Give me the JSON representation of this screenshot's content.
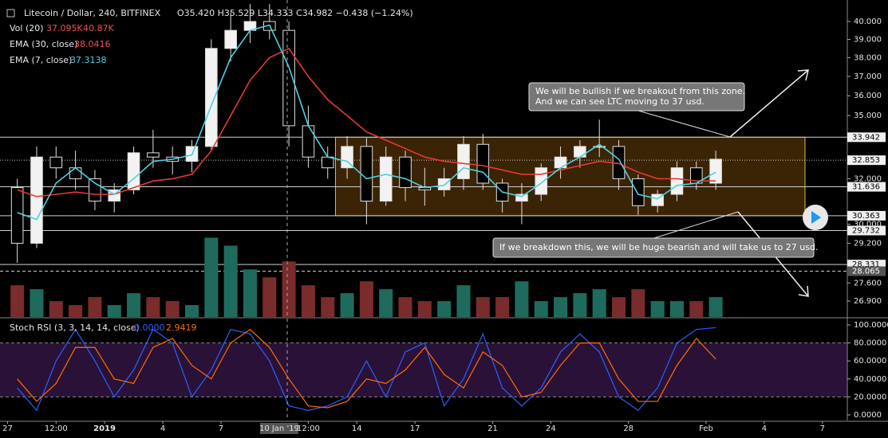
{
  "chart_data": [
    {
      "type": "candlestick",
      "title": "Litecoin / Dollar, 240, BITFINEX",
      "ohlc_readout": "O35.420 H35.529 L34.333 C34.982 −0.438 (−1.24%)",
      "log": true,
      "xlim": [
        -0.39,
        43.28
      ],
      "ylim": [
        26.3,
        41.24
      ],
      "y2lim": [
        0,
        400
      ],
      "xticks": [
        {
          "value": 0,
          "label": "27"
        },
        {
          "value": 2.5,
          "label": "12:00"
        },
        {
          "value": 5,
          "label": "2019"
        },
        {
          "value": 8,
          "label": "4"
        },
        {
          "value": 11,
          "label": "7"
        },
        {
          "value": 14,
          "label": "10 Jan '19"
        },
        {
          "value": 15.5,
          "label": "12:00"
        },
        {
          "value": 18,
          "label": "14"
        },
        {
          "value": 21,
          "label": "17"
        },
        {
          "value": 25,
          "label": "21"
        },
        {
          "value": 28,
          "label": "24"
        },
        {
          "value": 32,
          "label": "28"
        },
        {
          "value": 36,
          "label": "Feb"
        },
        {
          "value": 39,
          "label": "4"
        },
        {
          "value": 42,
          "label": "7"
        }
      ],
      "highlight_xtick": 5,
      "yticks": [
        {
          "value": 40,
          "label": "40.000"
        },
        {
          "value": 39,
          "label": "39.000"
        },
        {
          "value": 38,
          "label": "38.000"
        },
        {
          "value": 37,
          "label": "37.000"
        },
        {
          "value": 36,
          "label": "36.000"
        },
        {
          "value": 35,
          "label": "35.000"
        },
        {
          "value": 32,
          "label": "32.000"
        },
        {
          "value": 30,
          "label": "30.000"
        },
        {
          "value": 29.2,
          "label": "29.200"
        },
        {
          "value": 27.6,
          "label": "27.600"
        },
        {
          "value": 26.9,
          "label": "26.900"
        }
      ],
      "x": [
        0.5,
        1.5,
        2.5,
        3.5,
        4.5,
        5.5,
        6.5,
        7.5,
        8.5,
        9.5,
        10.5,
        11.5,
        12.5,
        13.5,
        14.5,
        15.5,
        16.5,
        17.5,
        18.5,
        19.5,
        20.5,
        21.5,
        22.5,
        23.5,
        24.5,
        25.5,
        26.5,
        27.5,
        28.5,
        29.5,
        30.5,
        31.5,
        32.5,
        33.5,
        34.5,
        35.5,
        36.5
      ],
      "ohlc": {
        "up_color": "#f2f2f2",
        "down_color": "#000000",
        "wick_color": "#e0e0e0",
        "open": [
          31.6,
          29.2,
          33.0,
          32.5,
          32.0,
          31.0,
          31.5,
          33.2,
          33.0,
          32.8,
          33.5,
          38.5,
          39.5,
          40.0,
          39.5,
          34.5,
          33.0,
          32.5,
          33.5,
          31.0,
          33.0,
          31.6,
          31.5,
          32.0,
          33.6,
          31.8,
          31.0,
          31.3,
          32.5,
          33.0,
          33.5,
          33.5,
          32.0,
          30.8,
          31.3,
          32.5,
          31.8
        ],
        "high": [
          32.0,
          33.5,
          33.5,
          33.3,
          32.4,
          31.8,
          33.5,
          34.3,
          33.5,
          33.8,
          39.0,
          40.5,
          41.0,
          41.0,
          40.0,
          35.5,
          33.5,
          34.0,
          33.9,
          33.5,
          33.3,
          32.5,
          32.5,
          34.0,
          34.1,
          32.0,
          31.8,
          32.7,
          33.5,
          33.8,
          34.8,
          33.8,
          32.2,
          31.5,
          32.8,
          32.8,
          33.3
        ],
        "low": [
          28.4,
          29.0,
          32.0,
          31.5,
          30.6,
          30.5,
          31.3,
          32.5,
          32.2,
          32.3,
          33.3,
          37.8,
          38.8,
          39.0,
          33.5,
          32.5,
          32.0,
          32.0,
          30.0,
          30.8,
          31.0,
          30.8,
          31.2,
          31.5,
          31.5,
          30.5,
          30.0,
          31.0,
          32.0,
          32.5,
          33.0,
          31.5,
          30.4,
          30.5,
          31.0,
          31.5,
          31.5
        ],
        "close": [
          29.2,
          33.0,
          32.5,
          32.0,
          31.0,
          31.5,
          33.2,
          33.0,
          32.8,
          33.5,
          38.5,
          39.5,
          40.0,
          39.5,
          34.5,
          33.0,
          32.5,
          33.5,
          31.0,
          33.0,
          31.6,
          31.5,
          32.0,
          33.6,
          31.8,
          31.0,
          31.3,
          32.5,
          33.0,
          33.5,
          33.5,
          32.0,
          30.8,
          31.3,
          32.5,
          31.8,
          32.9
        ]
      },
      "series": [
        {
          "name": "Vol (20)",
          "type": "bar",
          "axis": "y2",
          "up_color": "#1e6b5e",
          "down_color": "#7a2b2b",
          "legend_value": [
            "37.095K",
            "40.87K"
          ],
          "legend_color": [
            "#ef5350",
            "#ef5350"
          ],
          "values": [
            40,
            35,
            20,
            15,
            25,
            15,
            30,
            25,
            20,
            15,
            100,
            90,
            60,
            50,
            70,
            40,
            25,
            30,
            45,
            35,
            25,
            20,
            20,
            40,
            25,
            25,
            45,
            20,
            25,
            30,
            35,
            25,
            35,
            20,
            20,
            20,
            25
          ]
        },
        {
          "name": "EMA (30, close)",
          "type": "line",
          "color": "#e53935",
          "legend_value": "38.0416",
          "values": [
            31.5,
            31.2,
            31.3,
            31.4,
            31.3,
            31.3,
            31.6,
            31.9,
            32.0,
            32.2,
            33.3,
            35.0,
            36.8,
            38.0,
            38.5,
            37.0,
            35.8,
            35.0,
            34.2,
            33.8,
            33.4,
            33.0,
            32.8,
            32.7,
            32.6,
            32.4,
            32.2,
            32.2,
            32.4,
            32.6,
            32.8,
            32.7,
            32.3,
            32.0,
            32.0,
            31.9,
            31.9
          ]
        },
        {
          "name": "EMA (7, close)",
          "type": "line",
          "color": "#4dd0e1",
          "legend_value": "37.3138",
          "values": [
            30.5,
            30.2,
            31.8,
            32.5,
            31.8,
            31.3,
            32.0,
            32.8,
            32.9,
            33.1,
            35.5,
            38.0,
            39.5,
            39.8,
            37.5,
            34.5,
            33.0,
            32.8,
            32.0,
            32.2,
            32.0,
            31.6,
            31.7,
            32.5,
            32.3,
            31.4,
            31.2,
            31.8,
            32.5,
            33.0,
            33.6,
            32.9,
            31.3,
            31.1,
            31.7,
            31.8,
            32.3
          ]
        }
      ],
      "zone": {
        "x": [
          16.9,
          41.1
        ],
        "y": [
          30.363,
          33.942
        ],
        "fill": "#3b2405",
        "stroke": "#d4c04a"
      },
      "levels": [
        {
          "value": 33.942,
          "label": "33.942",
          "style": "solid"
        },
        {
          "value": 32.853,
          "label": "32.853",
          "style": "dotted"
        },
        {
          "value": 31.636,
          "label": "31.636",
          "style": "solid"
        },
        {
          "value": 30.363,
          "label": "30.363",
          "style": "solid"
        },
        {
          "value": 29.732,
          "label": "29.732",
          "style": "solid"
        },
        {
          "value": 28.331,
          "label": "28.331",
          "style": "solid"
        },
        {
          "value": 28.065,
          "label": "28.065",
          "style": "dashed"
        }
      ],
      "annotations": [
        {
          "lines": [
            "We will be bullish if we breakout from this zone.",
            "And we can see LTC moving to 37 usd."
          ]
        },
        {
          "lines": [
            "If we breakdown this, we will be huge bearish and will take us to 27 usd."
          ]
        }
      ]
    },
    {
      "type": "line",
      "title": "Stoch RSI (3, 3, 14, 14, close)",
      "xlim": [
        -0.39,
        43.28
      ],
      "ylim": [
        -6.2,
        107.1
      ],
      "yticks": [
        {
          "value": 100,
          "label": "100.0000"
        },
        {
          "value": 80,
          "label": "80.0000"
        },
        {
          "value": 60,
          "label": "60.0000"
        },
        {
          "value": 40,
          "label": "40.0000"
        },
        {
          "value": 20,
          "label": "20.0000"
        },
        {
          "value": 0,
          "label": "0.0000"
        }
      ],
      "band": [
        20,
        80
      ],
      "band_color": "#2a1138",
      "x": [
        0.5,
        1.5,
        2.5,
        3.5,
        4.5,
        5.5,
        6.5,
        7.5,
        8.5,
        9.5,
        10.5,
        11.5,
        12.5,
        13.5,
        14.5,
        15.5,
        16.5,
        17.5,
        18.5,
        19.5,
        20.5,
        21.5,
        22.5,
        23.5,
        24.5,
        25.5,
        26.5,
        27.5,
        28.5,
        29.5,
        30.5,
        31.5,
        32.5,
        33.5,
        34.5,
        35.5,
        36.5
      ],
      "series": [
        {
          "color": "#2962ff",
          "legend_value": "0.0000",
          "values": [
            30,
            5,
            60,
            95,
            60,
            20,
            50,
            95,
            80,
            20,
            50,
            95,
            90,
            60,
            10,
            5,
            10,
            20,
            60,
            20,
            70,
            80,
            10,
            40,
            90,
            30,
            10,
            30,
            70,
            90,
            70,
            20,
            5,
            30,
            80,
            95,
            97
          ]
        },
        {
          "color": "#ff6d00",
          "legend_value": "2.9419",
          "values": [
            40,
            15,
            35,
            75,
            75,
            40,
            35,
            75,
            85,
            55,
            40,
            80,
            95,
            75,
            40,
            10,
            8,
            15,
            40,
            35,
            50,
            75,
            45,
            30,
            70,
            55,
            20,
            25,
            55,
            80,
            80,
            40,
            15,
            15,
            55,
            85,
            62
          ]
        }
      ]
    }
  ]
}
